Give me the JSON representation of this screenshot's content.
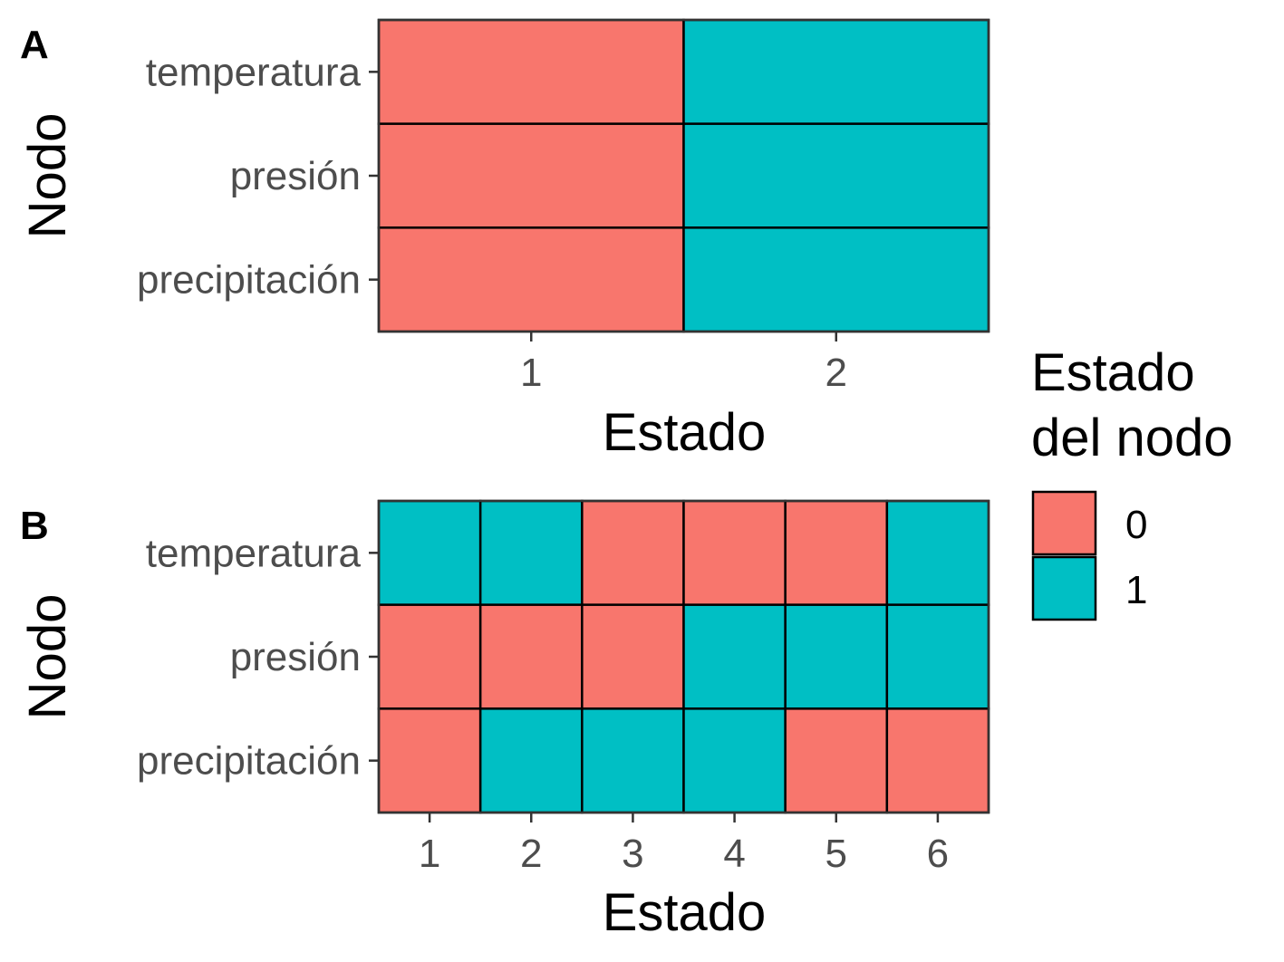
{
  "chart_data": [
    {
      "type": "heatmap",
      "panel_label": "A",
      "xlabel": "Estado",
      "ylabel": "Nodo",
      "x": [
        "1",
        "2"
      ],
      "y": [
        "temperatura",
        "presión",
        "precipitación"
      ],
      "values": [
        [
          0,
          1
        ],
        [
          0,
          1
        ],
        [
          0,
          1
        ]
      ]
    },
    {
      "type": "heatmap",
      "panel_label": "B",
      "xlabel": "Estado",
      "ylabel": "Nodo",
      "x": [
        "1",
        "2",
        "3",
        "4",
        "5",
        "6"
      ],
      "y": [
        "temperatura",
        "presión",
        "precipitación"
      ],
      "values": [
        [
          1,
          1,
          0,
          0,
          0,
          1
        ],
        [
          0,
          0,
          0,
          1,
          1,
          1
        ],
        [
          0,
          1,
          1,
          1,
          0,
          0
        ]
      ]
    }
  ],
  "legend": {
    "title_lines": [
      "Estado",
      "del nodo"
    ],
    "entries": [
      {
        "label": "0",
        "value": 0,
        "color": "#F8766D"
      },
      {
        "label": "1",
        "value": 1,
        "color": "#00BFC4"
      }
    ]
  },
  "colors": {
    "0": "#F8766D",
    "1": "#00BFC4"
  }
}
